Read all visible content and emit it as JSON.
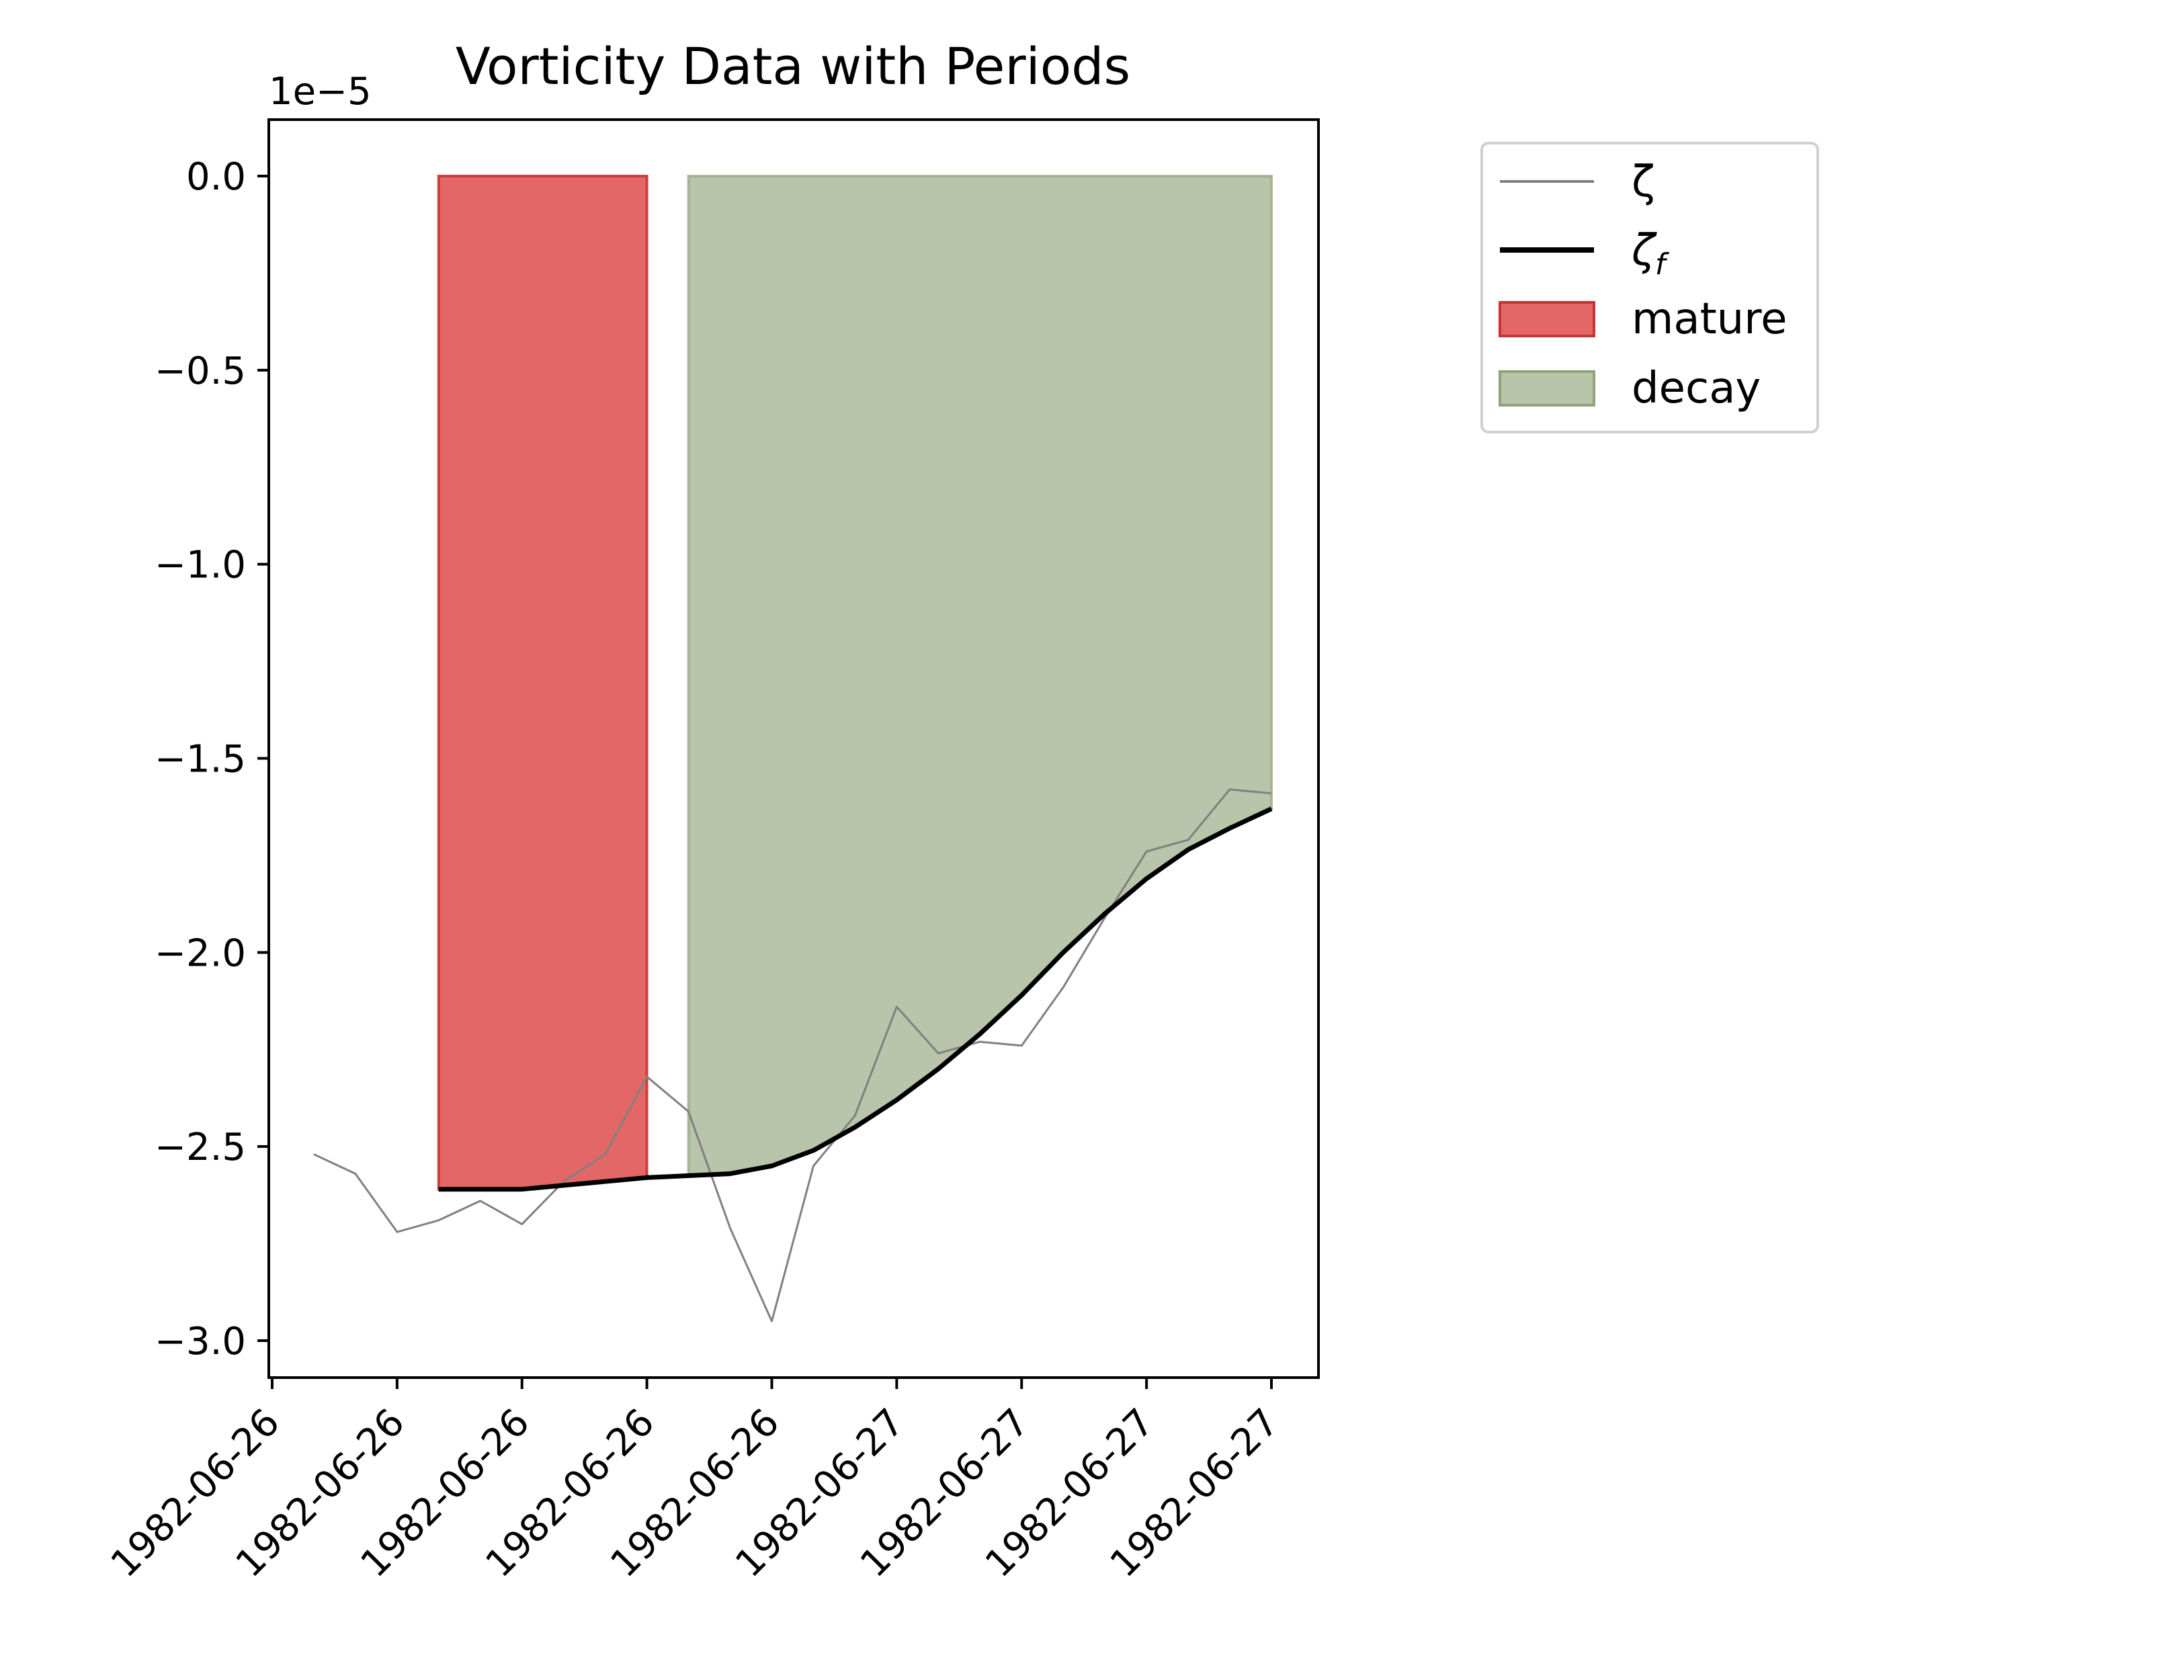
{
  "chart_data": {
    "type": "line",
    "title": "Vorticity Data with Periods",
    "xlabel": "",
    "ylabel": "",
    "y_offset_text": "1e−5",
    "ylim": [
      -3.09,
      0.15
    ],
    "y_ticks": [
      0.0,
      -0.5,
      -1.0,
      -1.5,
      -2.0,
      -2.5,
      -3.0
    ],
    "y_tick_labels": [
      "0.0",
      "−0.5",
      "−1.0",
      "−1.5",
      "−2.0",
      "−2.5",
      "−3.0"
    ],
    "x_tick_labels": [
      "1982-06-26",
      "1982-06-26",
      "1982-06-26",
      "1982-06-26",
      "1982-06-26",
      "1982-06-27",
      "1982-06-27",
      "1982-06-27",
      "1982-06-27"
    ],
    "x_tick_times": [
      "1982-06-26 00:00",
      "1982-06-26 06:00",
      "1982-06-26 12:00",
      "1982-06-26 18:00",
      "1982-06-27 00:00",
      "1982-06-27 06:00",
      "1982-06-27 12:00",
      "1982-06-27 18:00",
      "1982-06-28 00:00"
    ],
    "x_times": [
      "1982-06-26 02:00",
      "1982-06-26 04:00",
      "1982-06-26 06:00",
      "1982-06-26 08:00",
      "1982-06-26 10:00",
      "1982-06-26 12:00",
      "1982-06-26 14:00",
      "1982-06-26 16:00",
      "1982-06-26 18:00",
      "1982-06-26 20:00",
      "1982-06-26 22:00",
      "1982-06-27 00:00",
      "1982-06-27 02:00",
      "1982-06-27 04:00",
      "1982-06-27 06:00",
      "1982-06-27 08:00",
      "1982-06-27 10:00",
      "1982-06-27 12:00",
      "1982-06-27 14:00",
      "1982-06-27 16:00",
      "1982-06-27 18:00",
      "1982-06-27 20:00",
      "1982-06-27 22:00",
      "1982-06-28 00:00"
    ],
    "series": [
      {
        "name": "ζ",
        "color": "#808080",
        "values": [
          -2.52,
          -2.57,
          -2.72,
          -2.69,
          -2.64,
          -2.7,
          -2.59,
          -2.52,
          -2.32,
          -2.41,
          -2.71,
          -2.95,
          -2.55,
          -2.42,
          -2.14,
          -2.26,
          -2.23,
          -2.24,
          -2.09,
          -1.91,
          -1.74,
          -1.71,
          -1.58,
          -1.59
        ]
      },
      {
        "name": "ζf",
        "color": "#000000",
        "values": [
          null,
          null,
          null,
          -2.61,
          -2.61,
          -2.61,
          -2.6,
          -2.59,
          -2.58,
          -2.575,
          -2.57,
          -2.55,
          -2.51,
          -2.45,
          -2.38,
          -2.3,
          -2.21,
          -2.11,
          -2.0,
          -1.9,
          -1.81,
          -1.735,
          -1.68,
          -1.63
        ]
      }
    ],
    "periods": [
      {
        "name": "mature",
        "color": "#dc3c3c",
        "start": "1982-06-26 08:00",
        "end": "1982-06-26 18:00"
      },
      {
        "name": "decay",
        "color": "#8fa378",
        "start": "1982-06-26 20:00",
        "end": "1982-06-28 00:00"
      }
    ],
    "legend": {
      "placement": "outside upper right",
      "entries": [
        {
          "label": "ζ",
          "kind": "thin-line"
        },
        {
          "label": "ζ",
          "sub": "f",
          "kind": "thick-line"
        },
        {
          "label": "mature",
          "kind": "patch"
        },
        {
          "label": "decay",
          "kind": "patch"
        }
      ]
    },
    "grid": false
  }
}
